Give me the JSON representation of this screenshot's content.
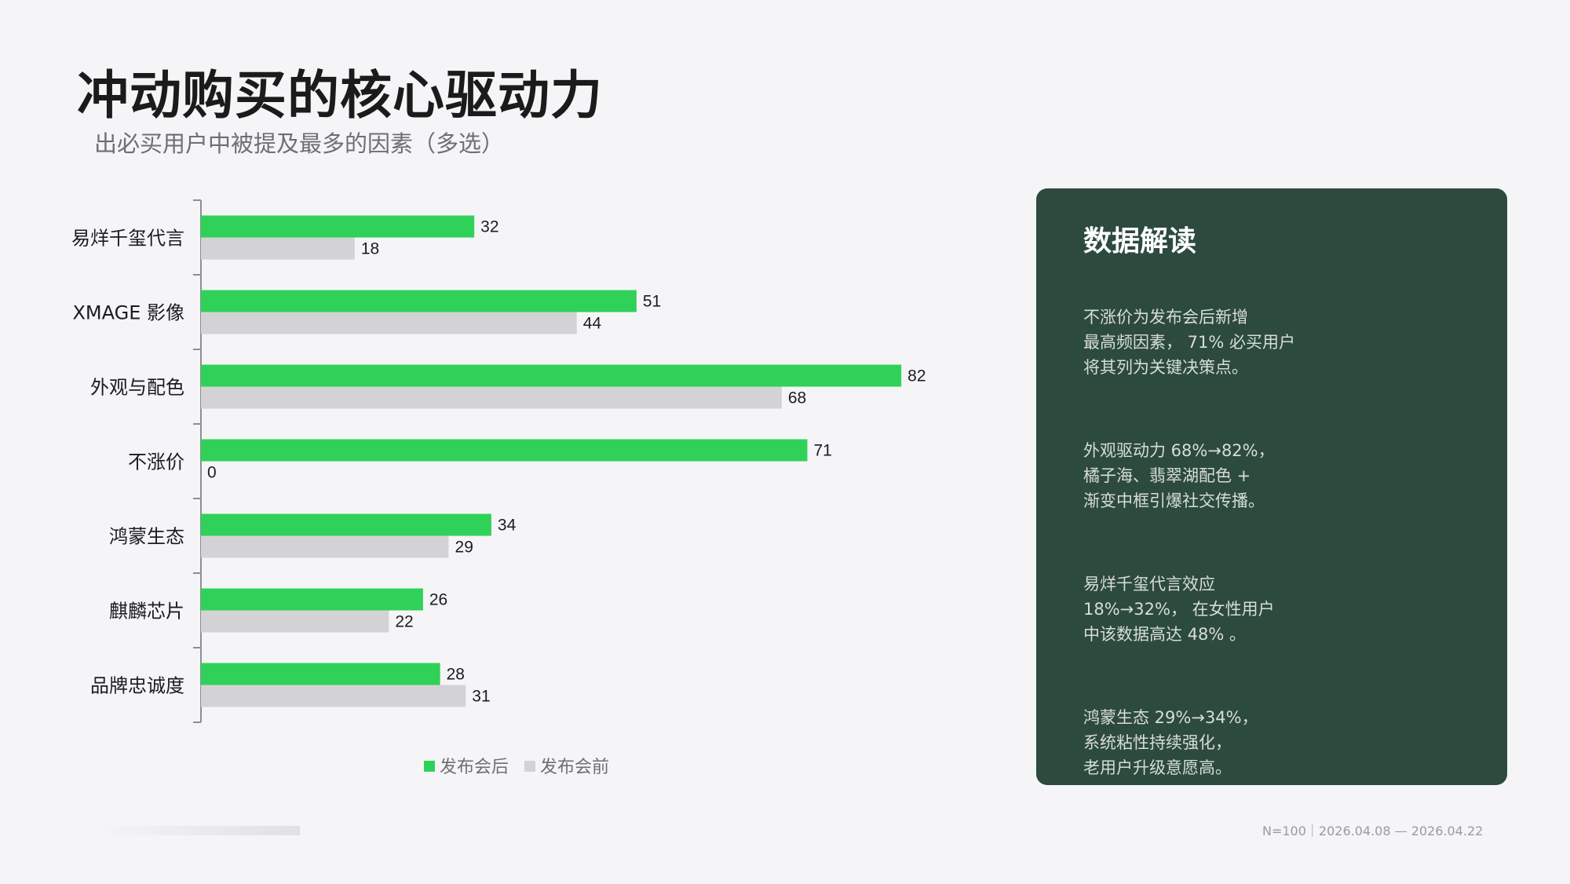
{
  "header": {
    "title": "冲动购买的核心驱动力",
    "subtitle": "出必买用户中被提及最多的因素（多选）"
  },
  "colors": {
    "after": "#30d158",
    "before": "#d3d3d6",
    "panel": "#2d4a3e",
    "axis": "#8e8e93",
    "label": "#1c1c1e"
  },
  "chart_data": {
    "type": "bar",
    "orientation": "horizontal",
    "categories": [
      "易烊千玺代言",
      "XMAGE 影像",
      "外观与配色",
      "不涨价",
      "鸿蒙生态",
      "麒麟芯片",
      "品牌忠诚度"
    ],
    "series": [
      {
        "name": "发布会后",
        "values": [
          32,
          51,
          82,
          71,
          34,
          26,
          28
        ]
      },
      {
        "name": "发布会前",
        "values": [
          18,
          44,
          68,
          0,
          29,
          22,
          31
        ]
      }
    ],
    "xlim": [
      0,
      100
    ],
    "grid": false,
    "legend": "bottom"
  },
  "panel": {
    "title": "数据解读",
    "insights": [
      [
        "不涨价为发布会后新增",
        "最高频因素， 71% 必买用户",
        "将其列为关键决策点。"
      ],
      [
        "外观驱动力 68%→82%，",
        "橘子海、翡翠湖配色 +",
        "渐变中框引爆社交传播。"
      ],
      [
        "易烊千玺代言效应",
        "18%→32%， 在女性用户",
        "中该数据高达 48% 。"
      ],
      [
        "鸿蒙生态 29%→34%，",
        "系统粘性持续强化，",
        "老用户升级意愿高。"
      ]
    ]
  },
  "footer": {
    "meta": "N=100｜2026.04.08 — 2026.04.22"
  }
}
